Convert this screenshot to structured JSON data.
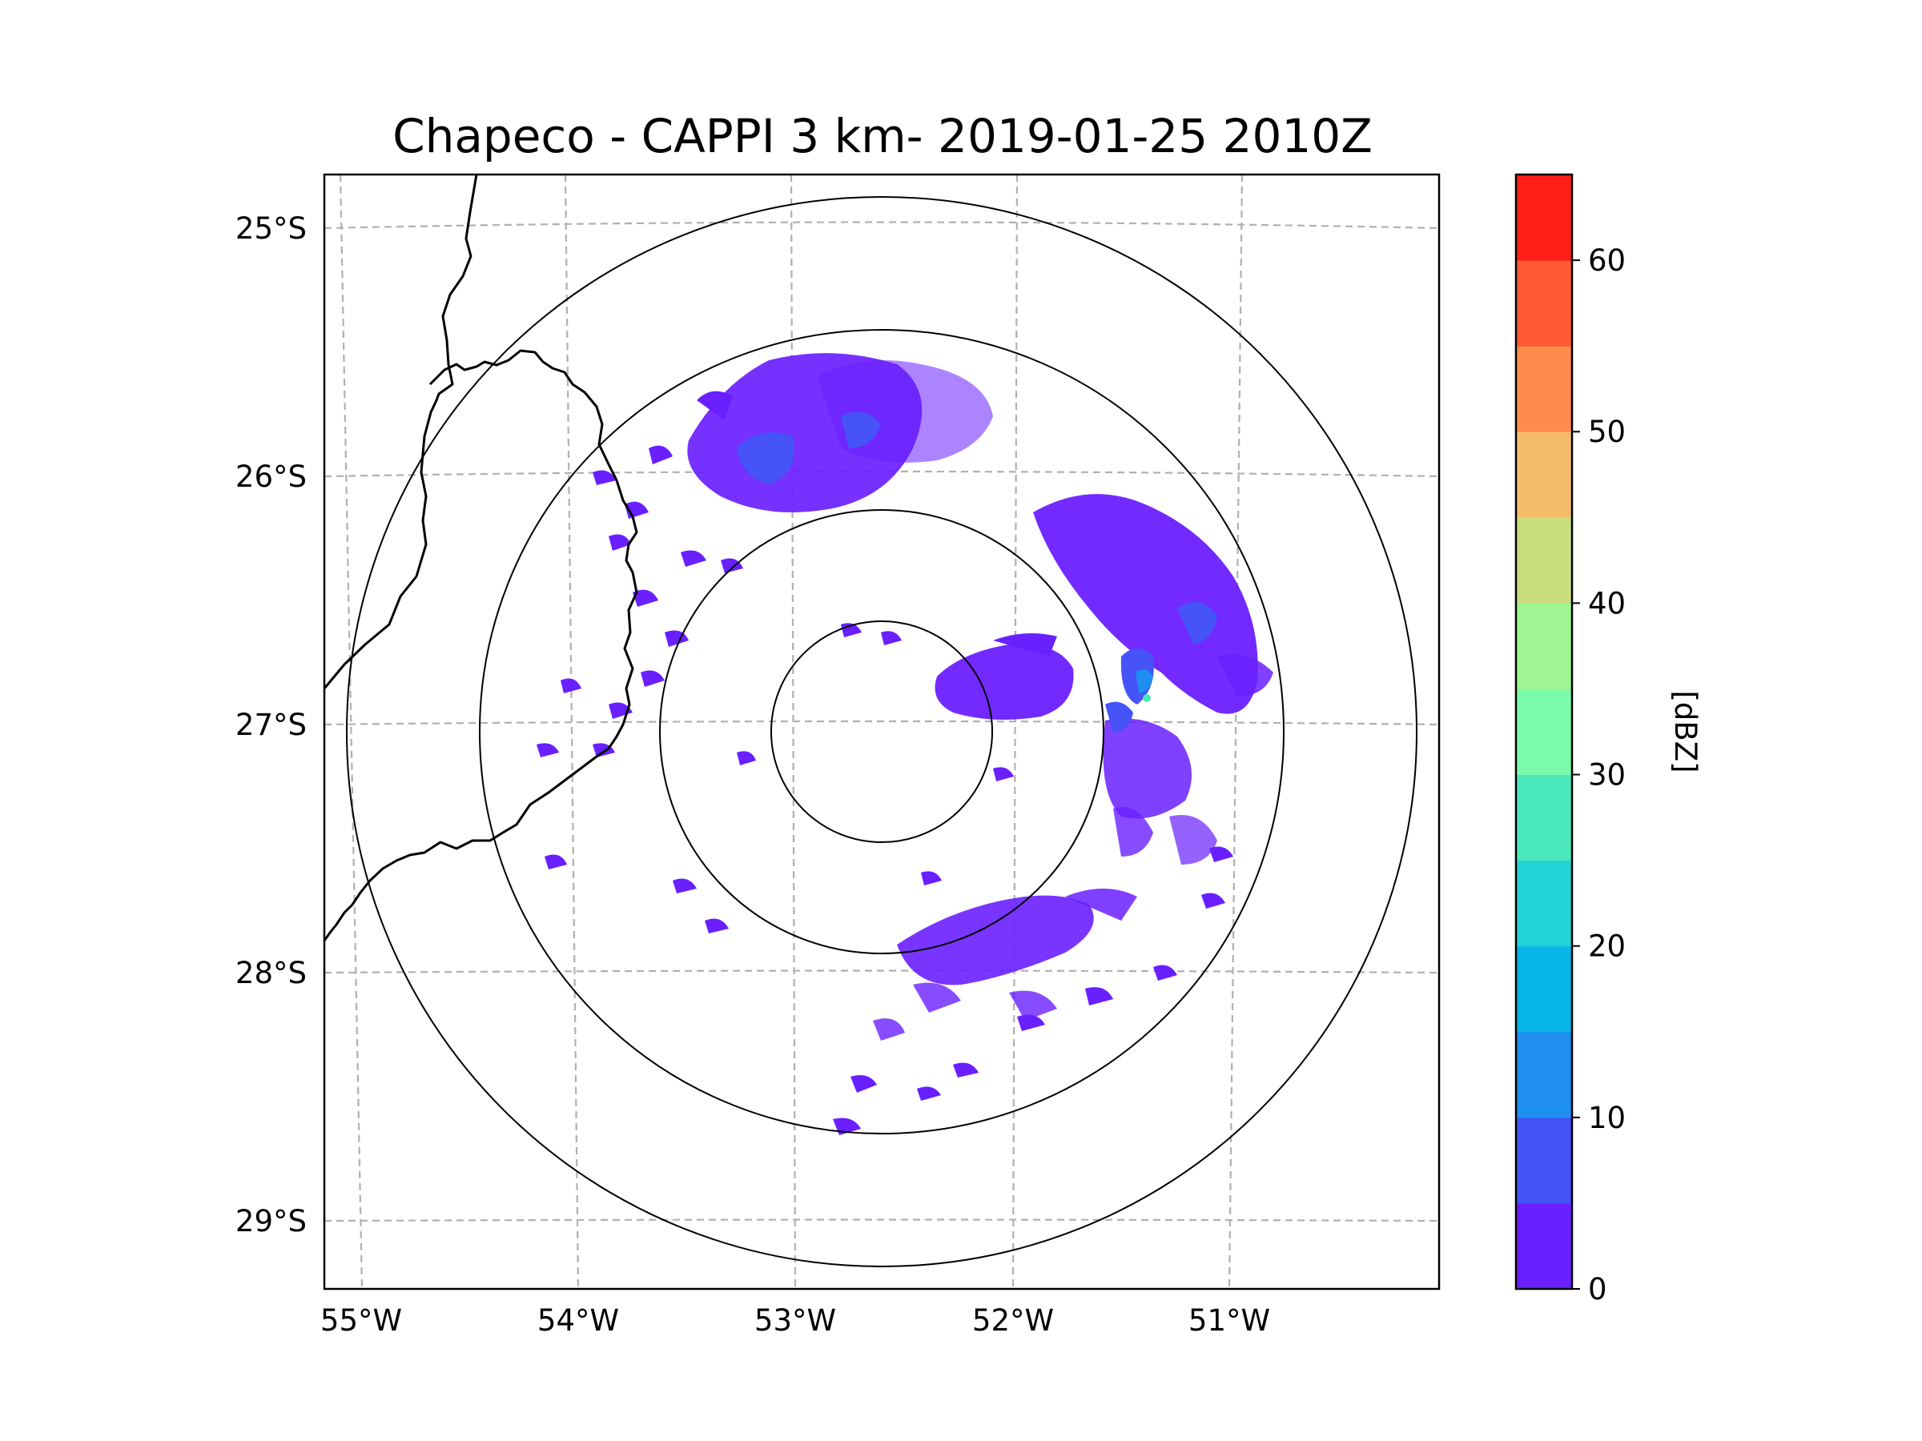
{
  "title": "Chapeco - CAPPI 3 km- 2019-01-25 2010Z",
  "map": {
    "lat_ticks": [
      "25°S",
      "26°S",
      "27°S",
      "28°S",
      "29°S"
    ],
    "lon_ticks": [
      "55°W",
      "54°W",
      "53°W",
      "52°W",
      "51°W"
    ],
    "gridlines": "dashed",
    "range_rings": 4
  },
  "colorbar": {
    "label": "[dBZ]",
    "ticks": [
      "0",
      "10",
      "20",
      "30",
      "40",
      "50",
      "60"
    ],
    "min": 0,
    "max": 65,
    "step": 5,
    "colors": [
      "#6a1fff",
      "#4553f7",
      "#1e8ef0",
      "#07b6e6",
      "#22d2d4",
      "#4ae8bb",
      "#7bfbaa",
      "#9ef591",
      "#cbde7f",
      "#f2bc6a",
      "#ff8c4c",
      "#ff5a33",
      "#ff1f18"
    ]
  },
  "echo_colors": {
    "weak": "#6a1fff",
    "light": "#4553f7",
    "moderate": "#1e8ef0",
    "strong": "#4ae8bb"
  }
}
